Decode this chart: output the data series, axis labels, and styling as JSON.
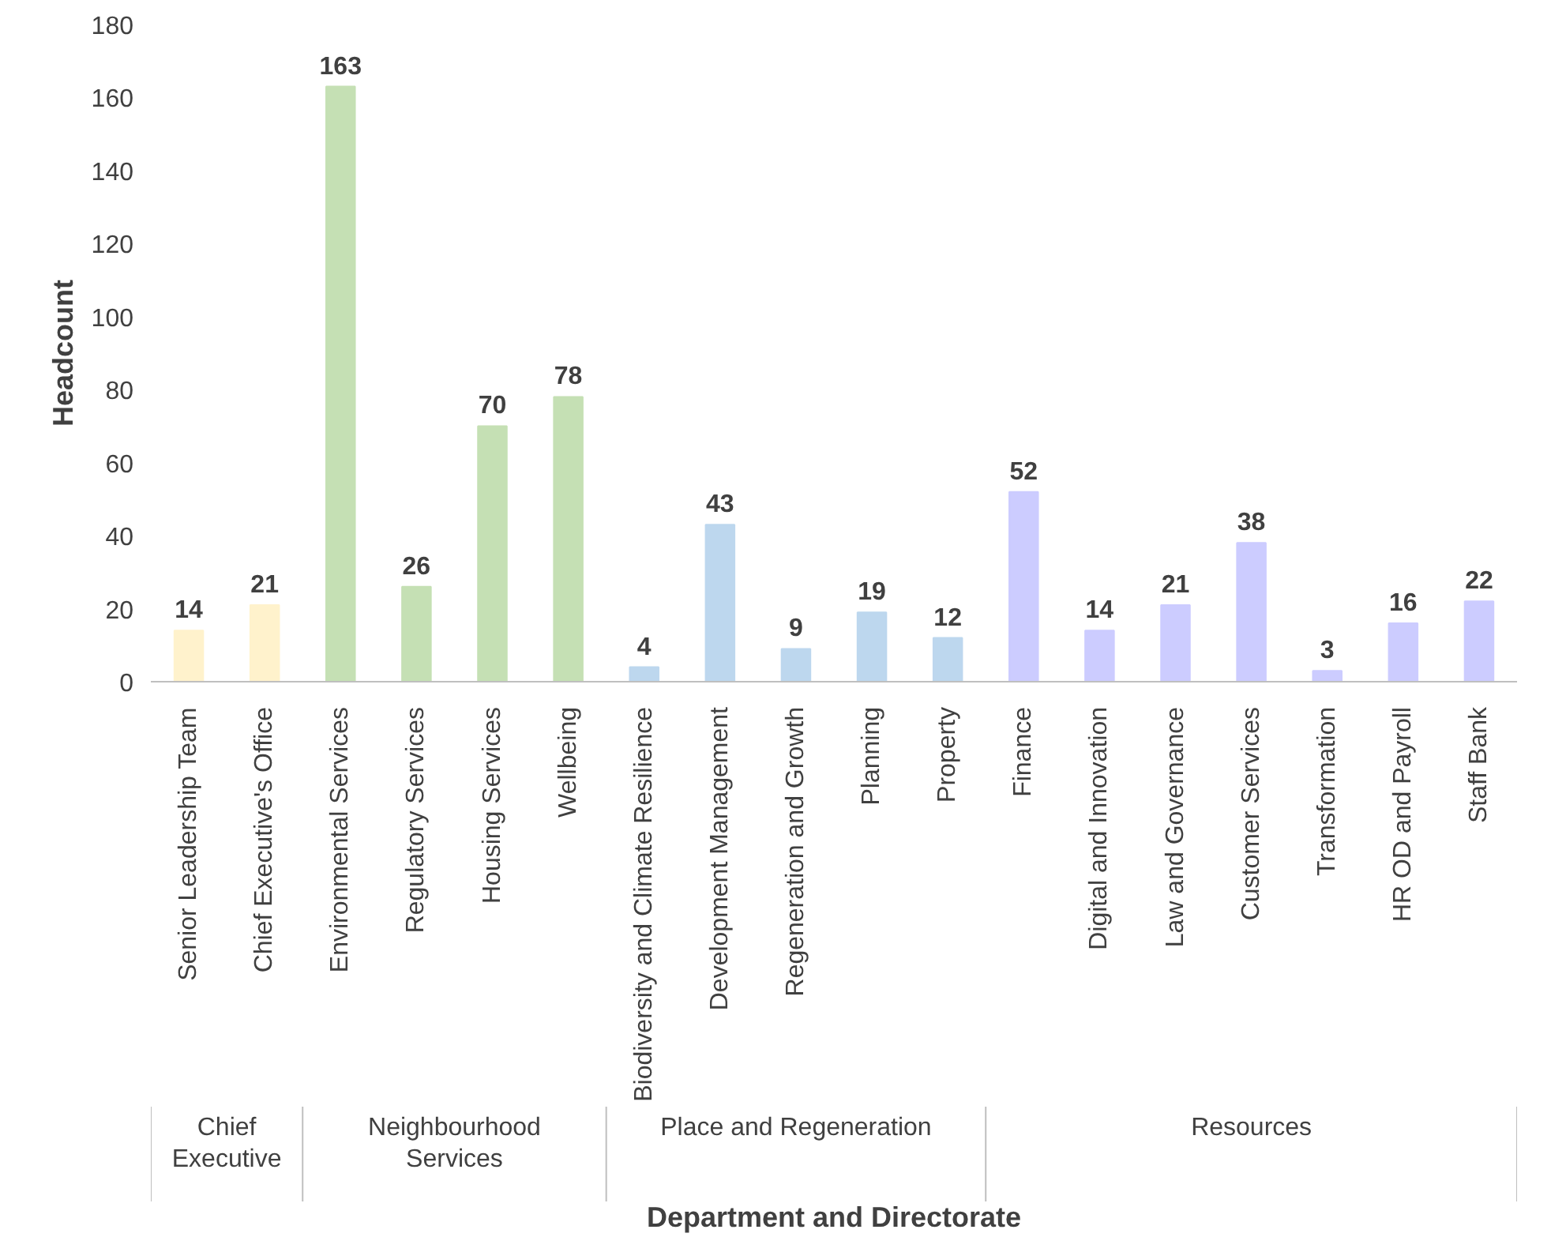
{
  "chart_data": {
    "type": "bar",
    "xlabel": "Department and Directorate",
    "ylabel": "Headcount",
    "categories": [
      "Senior Leadership Team",
      "Chief Executive's Office",
      "Environmental Services",
      "Regulatory Services",
      "Housing Services",
      "Wellbeing",
      "Biodiversity and Climate Resilience",
      "Development Management",
      "Regeneration and Growth",
      "Planning",
      "Property",
      "Finance",
      "Digital and Innovation",
      "Law and Governance",
      "Customer Services",
      "Transformation",
      "HR OD and Payroll",
      "Staff Bank"
    ],
    "values": [
      14,
      21,
      163,
      26,
      70,
      78,
      4,
      43,
      9,
      19,
      12,
      52,
      14,
      21,
      38,
      3,
      16,
      22
    ],
    "colors": [
      "#fff2cc",
      "#fff2cc",
      "#c5e0b4",
      "#c5e0b4",
      "#c5e0b4",
      "#c5e0b4",
      "#bdd7ee",
      "#bdd7ee",
      "#bdd7ee",
      "#bdd7ee",
      "#bdd7ee",
      "#ccccff",
      "#ccccff",
      "#ccccff",
      "#ccccff",
      "#ccccff",
      "#ccccff",
      "#ccccff"
    ],
    "annotations": [
      "Chief\nExecutive",
      "Neighbourhood\nServices",
      "Place and Regeneration",
      "Resources"
    ],
    "ylim": [
      0,
      180
    ],
    "yticks": [
      0,
      20,
      40,
      60,
      80,
      100,
      120,
      140,
      160,
      180
    ],
    "data_labels": true,
    "grid": false
  }
}
